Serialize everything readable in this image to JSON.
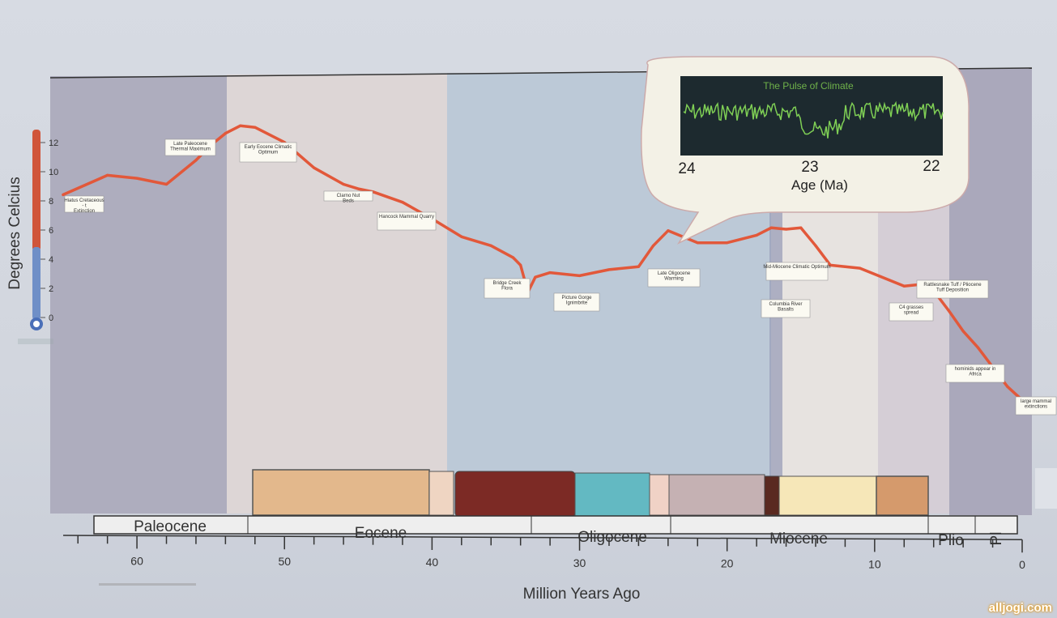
{
  "chart_data": {
    "type": "line",
    "xlabel": "Million Years Ago",
    "ylabel": "Degrees Celcius",
    "xlim": [
      65,
      0
    ],
    "x_ticks": [
      "60",
      "50",
      "40",
      "30",
      "20",
      "10",
      "0"
    ],
    "thermometer_ticks": [
      "12",
      "10",
      "8",
      "6",
      "4",
      "2",
      "0"
    ],
    "epochs": [
      "Paleocene",
      "Eocene",
      "Oligocene",
      "Miocene",
      "Plio",
      "Pl"
    ],
    "series": [
      {
        "x": [
          65,
          62,
          60,
          58,
          56,
          55,
          54,
          53,
          52,
          50,
          48,
          46,
          45,
          44,
          42,
          40,
          38,
          36,
          34.5,
          34,
          33.5,
          33,
          32,
          30,
          28,
          26,
          25,
          24,
          22,
          20,
          18,
          17,
          16,
          15,
          14,
          13,
          12,
          11,
          9,
          8,
          7,
          6,
          5,
          4,
          3,
          2,
          1,
          0
        ],
        "y": [
          8.3,
          9.6,
          9.4,
          9.0,
          10.6,
          11.6,
          12.4,
          12.9,
          12.8,
          11.8,
          10.1,
          9.0,
          8.7,
          8.5,
          7.8,
          6.7,
          5.5,
          4.9,
          4.1,
          3.6,
          1.8,
          2.8,
          3.1,
          2.9,
          3.3,
          3.5,
          4.9,
          5.9,
          5.1,
          5.1,
          5.6,
          6.1,
          6.0,
          6.1,
          4.9,
          3.6,
          3.5,
          3.4,
          2.6,
          2.2,
          2.3,
          1.9,
          0.6,
          -0.8,
          -1.9,
          -3.2,
          -4.5,
          -5.4
        ]
      }
    ],
    "annotations": [
      "Hiatus Cretaceous - t Extinction",
      "Late Paleocene Thermal Maximum",
      "Early Eocene Climatic Optimum",
      "Clarno Nut Beds",
      "Hancock Mammal Quarry",
      "Bridge Creek Flora",
      "Picture Gorge Ignimbrite",
      "Late Oligocene Warming",
      "Mid-Miocene Climatic Optimum",
      "Columbia River Basalts",
      "C4 grasses spread",
      "Rattlesnake Tuff / Pliocene Tuff Deposition",
      "hominids appear in Africa",
      "large mammal extinctions"
    ],
    "inset": {
      "title": "The Pulse of Climate",
      "x_ticks": [
        "24",
        "23",
        "22"
      ],
      "xlabel": "Age (Ma)"
    },
    "colors": {
      "curve": "#e2583a",
      "inset_bg": "#1d2a2f",
      "inset_line": "#7fcf55"
    }
  },
  "credit": "alljogi.com"
}
